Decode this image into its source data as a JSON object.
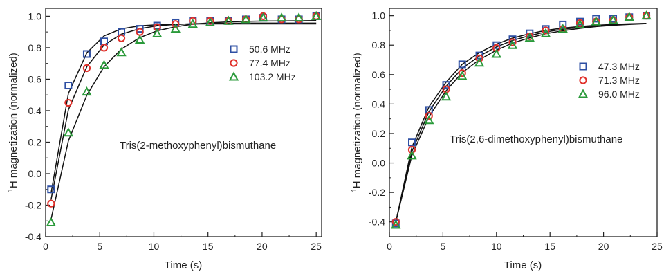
{
  "chart_data": [
    {
      "type": "scatter",
      "xlabel": "Time (s)",
      "ylabel_sup": "1",
      "ylabel": "H magnetization (normalized)",
      "xlim": [
        0,
        25.5
      ],
      "ylim": [
        -0.4,
        1.05
      ],
      "xticks": [
        "0",
        "5",
        "10",
        "15",
        "20",
        "25"
      ],
      "yticks": [
        "-0.4",
        "-0.2",
        "0.0",
        "0.2",
        "0.4",
        "0.6",
        "0.8",
        "1.0"
      ],
      "annotation": "Tris(2-methoxyphenyl)bismuthane",
      "legend_position": "center-right",
      "series": [
        {
          "name": "50.6 MHz",
          "marker": "square",
          "color": "#2e4fa3",
          "x": [
            0.5,
            2.1,
            3.8,
            5.4,
            7.0,
            8.7,
            10.3,
            12.0,
            13.6,
            15.2,
            16.9,
            18.5,
            20.1,
            21.8,
            23.4,
            25.0
          ],
          "y": [
            -0.1,
            0.56,
            0.76,
            0.84,
            0.9,
            0.92,
            0.94,
            0.96,
            0.97,
            0.97,
            0.97,
            0.98,
            0.99,
            0.98,
            0.98,
            1.0
          ],
          "fit_y": [
            -0.124,
            0.509,
            0.767,
            0.875,
            0.92,
            0.939,
            0.946,
            0.949,
            0.951,
            0.951,
            0.951,
            0.951,
            0.951,
            0.951,
            0.951,
            0.951
          ]
        },
        {
          "name": "77.4 MHz",
          "marker": "circle",
          "color": "#e0302a",
          "x": [
            0.5,
            2.1,
            3.8,
            5.4,
            7.0,
            8.7,
            10.3,
            12.0,
            13.6,
            15.2,
            16.9,
            18.5,
            20.1,
            21.8,
            23.4,
            25.0
          ],
          "y": [
            -0.19,
            0.45,
            0.67,
            0.8,
            0.86,
            0.9,
            0.93,
            0.95,
            0.97,
            0.97,
            0.97,
            0.98,
            1.0,
            0.98,
            0.98,
            1.0
          ],
          "fit_y": [
            -0.165,
            0.406,
            0.679,
            0.817,
            0.886,
            0.921,
            0.939,
            0.948,
            0.952,
            0.954,
            0.955,
            0.956,
            0.956,
            0.956,
            0.956,
            0.956
          ]
        },
        {
          "name": "103.2 MHz",
          "marker": "triangle",
          "color": "#2a9a3a",
          "x": [
            0.5,
            2.1,
            3.8,
            5.4,
            7.0,
            8.7,
            10.3,
            12.0,
            13.6,
            15.2,
            16.9,
            18.5,
            20.1,
            21.8,
            23.4,
            25.0
          ],
          "y": [
            -0.31,
            0.26,
            0.52,
            0.69,
            0.77,
            0.85,
            0.89,
            0.92,
            0.95,
            0.96,
            0.97,
            0.98,
            0.99,
            0.99,
            0.99,
            1.0
          ],
          "fit_y": [
            -0.29,
            0.208,
            0.498,
            0.679,
            0.791,
            0.864,
            0.907,
            0.933,
            0.949,
            0.958,
            0.964,
            0.967,
            0.969,
            0.97,
            0.971,
            0.972
          ]
        }
      ]
    },
    {
      "type": "scatter",
      "xlabel": "Time (s)",
      "ylabel_sup": "1",
      "ylabel": "H magnetization (normalized)",
      "xlim": [
        0,
        25
      ],
      "ylim": [
        -0.5,
        1.05
      ],
      "xticks": [
        "0",
        "5",
        "10",
        "15",
        "20",
        "25"
      ],
      "yticks": [
        "-0.4",
        "-0.2",
        "0.0",
        "0.2",
        "0.4",
        "0.6",
        "0.8",
        "1.0"
      ],
      "annotation": "Tris(2,6-dimethoxyphenyl)bismuthane",
      "legend_position": "right",
      "series": [
        {
          "name": "47.3 MHz",
          "marker": "square",
          "color": "#2e4fa3",
          "x": [
            0.6,
            2.1,
            3.7,
            5.3,
            6.8,
            8.4,
            10.0,
            11.5,
            13.1,
            14.6,
            16.2,
            17.8,
            19.3,
            20.9,
            22.4,
            24.0
          ],
          "y": [
            -0.41,
            0.14,
            0.36,
            0.53,
            0.67,
            0.73,
            0.8,
            0.84,
            0.88,
            0.91,
            0.94,
            0.96,
            0.98,
            0.98,
            0.99,
            1.0
          ],
          "fit_y": [
            -0.4,
            0.107,
            0.382,
            0.549,
            0.67,
            0.749,
            0.807,
            0.848,
            0.878,
            0.9,
            0.916,
            0.927,
            0.935,
            0.941,
            0.945,
            0.948
          ]
        },
        {
          "name": "71.3 MHz",
          "marker": "circle",
          "color": "#e0302a",
          "x": [
            0.6,
            2.1,
            3.7,
            5.3,
            6.8,
            8.4,
            10.0,
            11.5,
            13.1,
            14.6,
            16.2,
            17.8,
            19.3,
            20.9,
            22.4,
            24.0
          ],
          "y": [
            -0.4,
            0.09,
            0.32,
            0.5,
            0.61,
            0.71,
            0.78,
            0.82,
            0.86,
            0.9,
            0.91,
            0.95,
            0.96,
            0.97,
            0.99,
            1.0
          ],
          "fit_y": [
            -0.4,
            0.078,
            0.349,
            0.521,
            0.643,
            0.726,
            0.788,
            0.832,
            0.865,
            0.89,
            0.908,
            0.921,
            0.931,
            0.938,
            0.943,
            0.947
          ]
        },
        {
          "name": "96.0 MHz",
          "marker": "triangle",
          "color": "#2a9a3a",
          "x": [
            0.6,
            2.1,
            3.7,
            5.3,
            6.8,
            8.4,
            10.0,
            11.5,
            13.1,
            14.6,
            16.2,
            17.8,
            19.3,
            20.9,
            22.4,
            24.0
          ],
          "y": [
            -0.42,
            0.05,
            0.29,
            0.45,
            0.59,
            0.68,
            0.74,
            0.8,
            0.85,
            0.88,
            0.91,
            0.94,
            0.96,
            0.97,
            0.99,
            1.0
          ],
          "fit_y": [
            -0.4,
            0.052,
            0.315,
            0.49,
            0.614,
            0.701,
            0.766,
            0.814,
            0.85,
            0.878,
            0.898,
            0.914,
            0.926,
            0.935,
            0.941,
            0.946
          ]
        }
      ]
    }
  ]
}
